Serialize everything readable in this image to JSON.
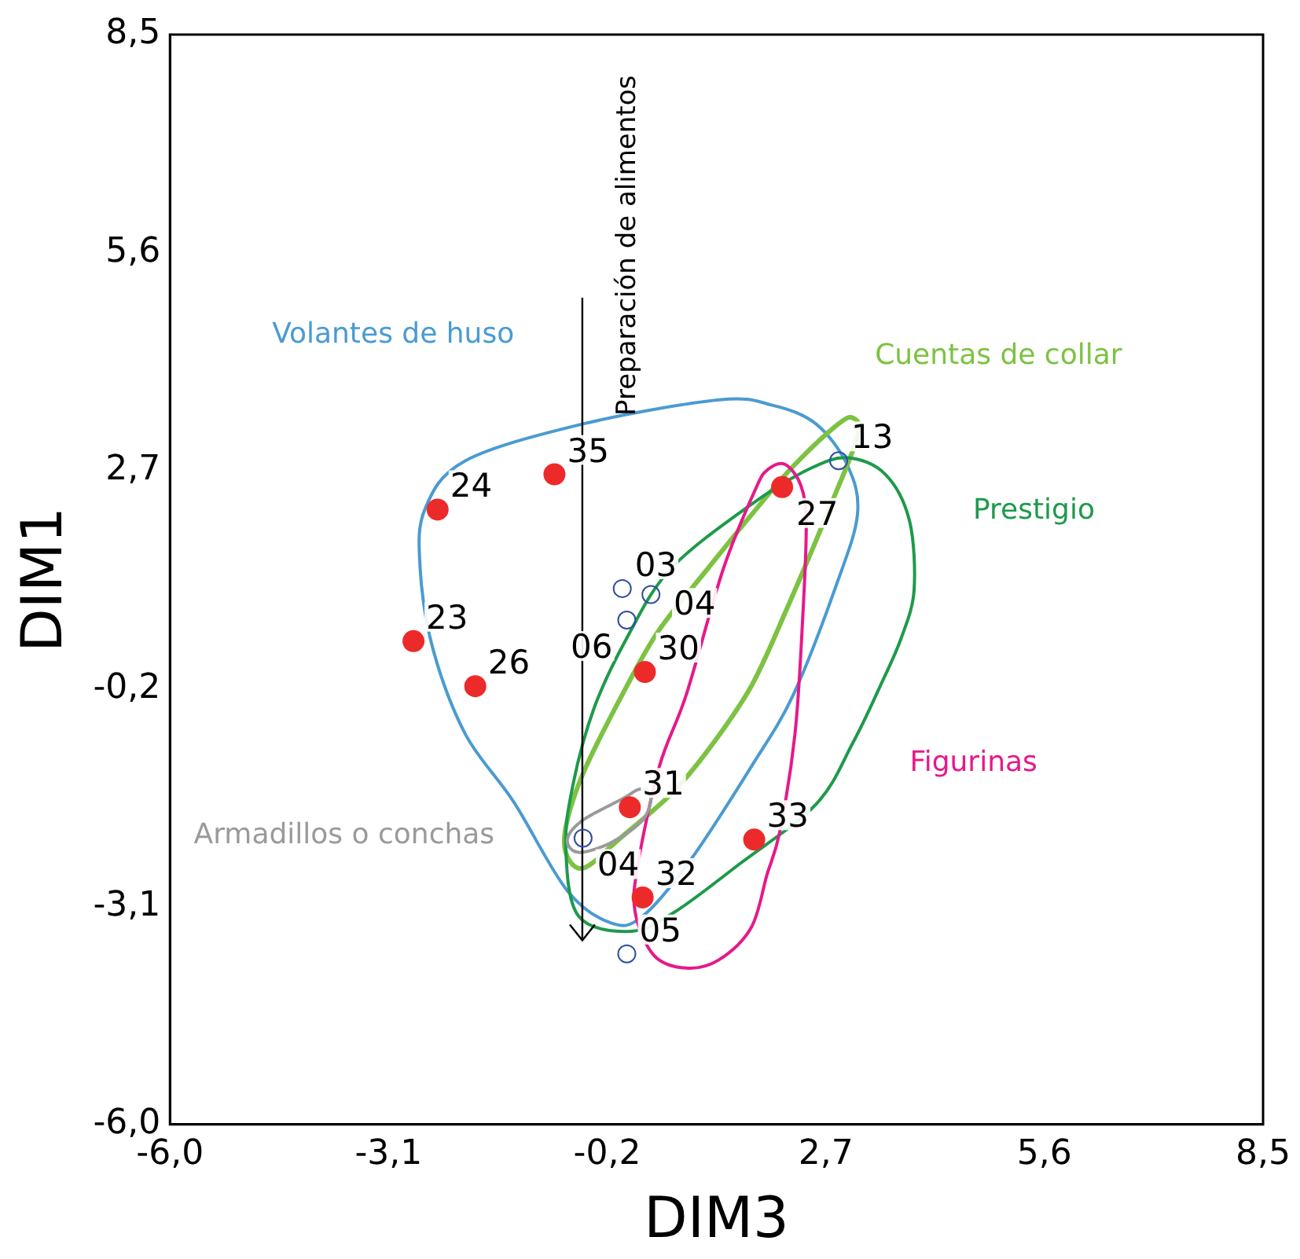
{
  "chart_data": {
    "type": "scatter",
    "xlabel": "DIM3",
    "ylabel": "DIM1",
    "xlim": [
      -6,
      8.5
    ],
    "ylim": [
      -6,
      8.5
    ],
    "xticks": [
      {
        "value": -6,
        "label": "-6,0"
      },
      {
        "value": -3.1,
        "label": "-3,1"
      },
      {
        "value": -0.2,
        "label": "-0,2"
      },
      {
        "value": 2.7,
        "label": "2,7"
      },
      {
        "value": 5.6,
        "label": "5,6"
      },
      {
        "value": 8.5,
        "label": "8,5"
      }
    ],
    "yticks": [
      {
        "value": -6,
        "label": "-6,0"
      },
      {
        "value": -3.1,
        "label": "-3,1"
      },
      {
        "value": -0.2,
        "label": "-0,2"
      },
      {
        "value": 2.7,
        "label": "2,7"
      },
      {
        "value": 5.6,
        "label": "5,6"
      },
      {
        "value": 8.5,
        "label": "8,5"
      }
    ],
    "grid": false,
    "legend": false,
    "marker": "circle",
    "series": [
      {
        "color": "#ed2a2a",
        "x": [
          -0.9,
          -2.45,
          -2.77,
          -1.95,
          0.3,
          2.12,
          0.1,
          1.75,
          0.27
        ],
        "values": [
          2.65,
          2.18,
          0.43,
          -0.17,
          0.02,
          2.48,
          -1.78,
          -2.21,
          -2.98
        ]
      },
      {
        "color": "#2e4fa2",
        "x": [
          0,
          0.38,
          0.06,
          2.87,
          -0.52,
          0.06
        ],
        "values": [
          1.13,
          1.05,
          0.71,
          2.83,
          -2.19,
          -3.73
        ]
      }
    ],
    "annotations": [
      "Preparación de alimentos",
      "Volantes de huso",
      "Cuentas de collar",
      "Prestigio",
      "Figurinas",
      "Armadillos o conchas",
      {
        "text": "35",
        "x": -0.9,
        "y": 2.65
      },
      {
        "text": "24",
        "x": -2.45,
        "y": 2.18
      },
      {
        "text": "23",
        "x": -2.77,
        "y": 0.43
      },
      {
        "text": "26",
        "x": -1.95,
        "y": -0.17
      },
      {
        "text": "30",
        "x": 0.3,
        "y": 0.02
      },
      {
        "text": "27",
        "x": 2.12,
        "y": 2.48
      },
      {
        "text": "31",
        "x": 0.1,
        "y": -1.78
      },
      {
        "text": "33",
        "x": 1.75,
        "y": -2.21
      },
      {
        "text": "32",
        "x": 0.27,
        "y": -2.98
      },
      {
        "text": "03",
        "x": 0,
        "y": 1.13
      },
      {
        "text": "04",
        "x": 0.38,
        "y": 1.05
      },
      {
        "text": "06",
        "x": 0.06,
        "y": 0.71
      },
      {
        "text": "13",
        "x": 2.87,
        "y": 2.83
      },
      {
        "text": "04",
        "x": -0.52,
        "y": -2.19
      },
      {
        "text": "05",
        "x": 0.06,
        "y": -3.73
      }
    ]
  }
}
